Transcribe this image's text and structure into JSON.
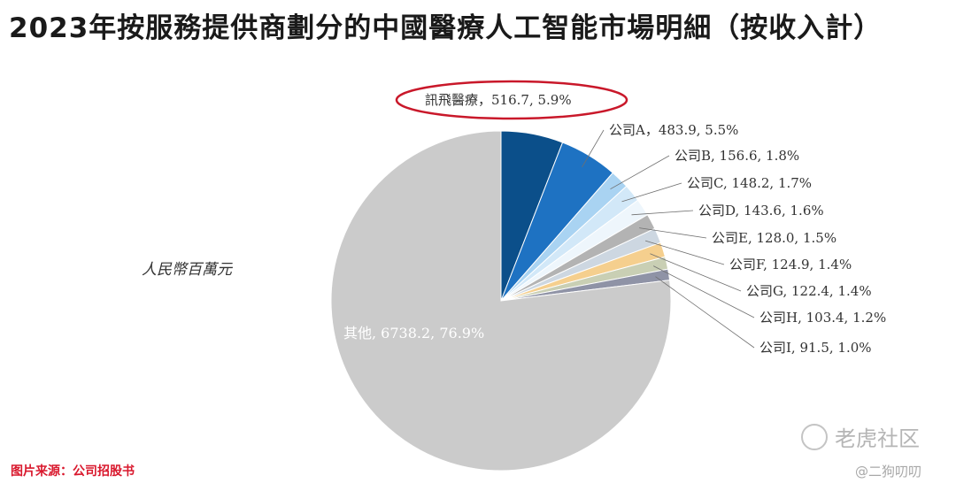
{
  "title": "2023年按服務提供商劃分的中國醫療人工智能市場明細（按收入計）",
  "unit_label": "人民幣百萬元",
  "source": "图片来源：公司招股书",
  "watermark": {
    "brand": "老虎社区",
    "user": "@二狗叨叨"
  },
  "chart_data": {
    "type": "pie",
    "title": "2023年按服務提供商劃分的中國醫療人工智能市場明細（按收入計）",
    "unit": "人民幣百萬元",
    "slices": [
      {
        "label": "訊飛醫療",
        "value": 516.7,
        "percent": "5.9%",
        "color": "#0b4f8a",
        "highlighted": true
      },
      {
        "label": "公司A",
        "value": 483.9,
        "percent": "5.5%",
        "color": "#1e72c2"
      },
      {
        "label": "公司B",
        "value": 156.6,
        "percent": "1.8%",
        "color": "#a9d3f2"
      },
      {
        "label": "公司C",
        "value": 148.2,
        "percent": "1.7%",
        "color": "#d2e8f8"
      },
      {
        "label": "公司D",
        "value": 143.6,
        "percent": "1.6%",
        "color": "#eef6fc"
      },
      {
        "label": "公司E",
        "value": 128.0,
        "percent": "1.5%",
        "color": "#b3b3b3"
      },
      {
        "label": "公司F",
        "value": 124.9,
        "percent": "1.4%",
        "color": "#cdd7e1"
      },
      {
        "label": "公司G",
        "value": 122.4,
        "percent": "1.4%",
        "color": "#f5cf8e"
      },
      {
        "label": "公司H",
        "value": 103.4,
        "percent": "1.2%",
        "color": "#c9cfb4"
      },
      {
        "label": "公司I",
        "value": 91.5,
        "percent": "1.0%",
        "color": "#8f93a6"
      },
      {
        "label": "其他",
        "value": 6738.2,
        "percent": "76.9%",
        "color": "#cbcbcb"
      }
    ]
  }
}
